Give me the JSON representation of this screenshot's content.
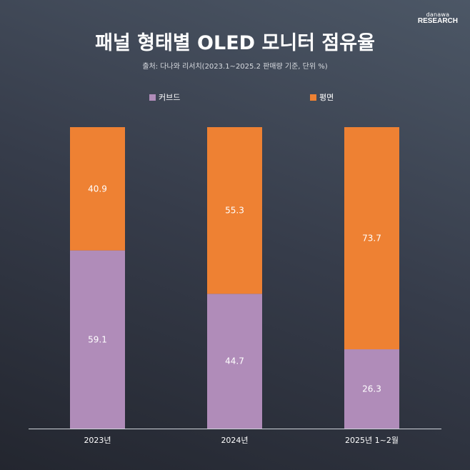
{
  "logo": {
    "line1": "danawa",
    "line2": "RESEARCH"
  },
  "chart_data": {
    "type": "bar",
    "stacked": true,
    "title": "패널 형태별 OLED 모니터 점유율",
    "subtitle": "출처: 다나와 리서치(2023.1~2025.2 판매량 기준, 단위 %)",
    "categories": [
      "2023년",
      "2024년",
      "2025년 1~2월"
    ],
    "series": [
      {
        "name": "커브드",
        "color": "#b08cb9",
        "values": [
          59.1,
          44.7,
          26.3
        ]
      },
      {
        "name": "평면",
        "color": "#ee8133",
        "values": [
          40.9,
          55.3,
          73.7
        ]
      }
    ],
    "ylim": [
      0,
      100
    ],
    "grid": false,
    "legend": "top"
  }
}
